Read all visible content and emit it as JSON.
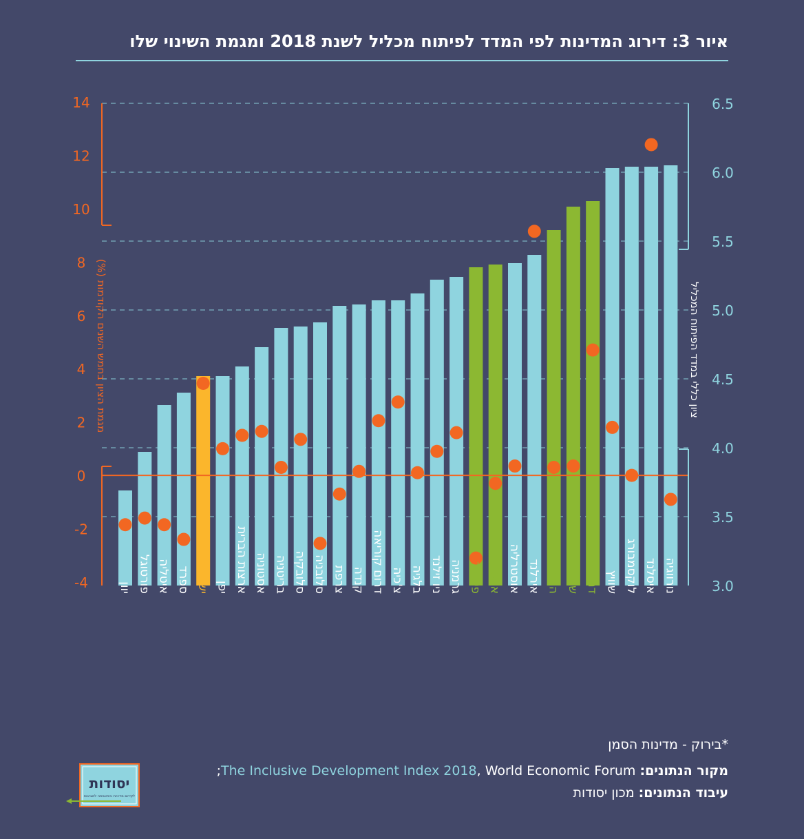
{
  "title": "איור 3: דירוג המדינות לפי המדד לפיתוח מכליל לשנת 2018 ומגמת השינוי שלו",
  "colors": {
    "background": "#434869",
    "bar": "#8fd4df",
    "israel": "#fbb62c",
    "highlight": "#8cb832",
    "dot": "#f26722",
    "left_axis": "#f26722",
    "right_axis": "#8fd4df"
  },
  "chart_data": {
    "type": "bar",
    "title": "איור 3: דירוג המדינות לפי המדד לפיתוח מכליל לשנת 2018 ומגמת השינוי שלו",
    "categories": [
      "יוון",
      "פורטוגל",
      "איטליה",
      "ספרד",
      "ישראל",
      "יפן",
      "ארצות הברית",
      "אסטוניה",
      "בריטניה",
      "סלובקיה",
      "סלובניה",
      "צרפת",
      "קנדה",
      "דרום קוריאה",
      "צ'כיה",
      "בלגיה",
      "ניו זילנד",
      "גרמניה",
      "פינלנד",
      "אוסטריה",
      "אוסטרליה",
      "אירלנד",
      "הולנד",
      "שוודיה",
      "דנמרק",
      "שוויץ",
      "לוקסמבורג",
      "איסלנד",
      "נורווגיה"
    ],
    "category_groups": [
      "other",
      "other",
      "other",
      "other",
      "israel",
      "other",
      "other",
      "other",
      "other",
      "other",
      "other",
      "other",
      "other",
      "other",
      "other",
      "other",
      "other",
      "other",
      "highlight",
      "highlight",
      "other",
      "other",
      "highlight",
      "highlight",
      "highlight",
      "other",
      "other",
      "other",
      "other"
    ],
    "series": [
      {
        "name": "ציון כללי במדד הפיתוח המכליל",
        "axis": "right",
        "type": "bar",
        "values": [
          3.69,
          3.97,
          4.31,
          4.4,
          4.52,
          4.52,
          4.59,
          4.73,
          4.87,
          4.88,
          4.91,
          5.03,
          5.04,
          5.07,
          5.07,
          5.12,
          5.22,
          5.24,
          5.31,
          5.33,
          5.34,
          5.4,
          5.58,
          5.75,
          5.79,
          6.03,
          6.04,
          6.04,
          6.05
        ]
      },
      {
        "name": "מגמת הציון בחמש השנים הקודמות (%)",
        "axis": "left",
        "type": "scatter",
        "values": [
          -1.85,
          -1.6,
          -1.85,
          -2.4,
          3.45,
          1.0,
          1.5,
          1.65,
          0.3,
          1.35,
          -2.55,
          -0.7,
          0.15,
          2.05,
          2.75,
          0.1,
          0.9,
          1.6,
          -3.1,
          -0.3,
          0.35,
          9.15,
          0.3,
          0.35,
          4.7,
          1.8,
          0.0,
          12.4,
          -0.9
        ]
      }
    ],
    "left_axis": {
      "label": "מגמת הציון בחמש השנים הקודמות (%)",
      "ticks": [
        "14",
        "12",
        "10",
        "8",
        "6",
        "4",
        "2",
        "0",
        "-2",
        "-4"
      ],
      "range": [
        -4,
        14
      ]
    },
    "right_axis": {
      "label": "ציון כללי במדד הפיתוח המכליל",
      "ticks": [
        "6.5",
        "6.0",
        "5.5",
        "5.0",
        "4.5",
        "4.0",
        "3.5",
        "3.0"
      ],
      "range": [
        3.0,
        6.5
      ]
    },
    "grid": "dashed-horizontal"
  },
  "footer": {
    "note": "*בירוק - מדינות הסמן",
    "source_label": "מקור הנתונים:",
    "source_link": "The Inclusive Development Index 2018",
    "source_rest": ", World Economic Forum",
    "source_end": ";",
    "processing_label": "עיבוד הנתונים:",
    "processing_value": "מכון יסודות"
  },
  "logo": {
    "name": "יסודות",
    "tagline": "לקידום מדיניות והתאמתה למציאות"
  }
}
